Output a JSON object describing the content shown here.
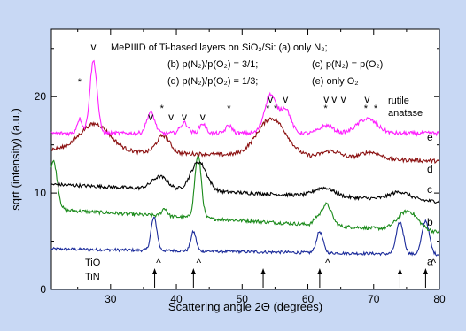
{
  "chart_data": {
    "type": "line",
    "title": "",
    "xlabel": "Scattering angle 2Θ (degrees)",
    "ylabel": "sqrt (intensity) (a.u.)",
    "xlim": [
      21,
      80
    ],
    "ylim": [
      0,
      27
    ],
    "x_ticks": [
      30,
      40,
      50,
      60,
      70,
      80
    ],
    "y_ticks": [
      0,
      10,
      20
    ],
    "grid": false,
    "colors": {
      "page_background": "#c8d8f4",
      "plot_background": "#ffffff",
      "a": "#1a2a9a",
      "b": "#1a8a1a",
      "c": "#000000",
      "d": "#8b1010",
      "e": "#ff20ff"
    },
    "annotation_lines": [
      {
        "text": "MePIIID of Ti-based layers on SiO",
        "sub": "2",
        "tail": "/Si: (a) only N",
        "sub2": "2",
        "tail2": ";"
      }
    ],
    "legend_text": {
      "line1": "MePIIID of Ti-based layers on SiO₂/Si: (a) only N₂;",
      "line2a": "(b) p(N₂)/p(O₂) = 3/1;",
      "line2b": "(c) p(N₂) = p(O₂)",
      "line3a": "(d) p(N₂)/p(O₂) = 1/3;",
      "line3b": "(e) only O₂"
    },
    "phase_labels": {
      "rutile": "rutile",
      "anatase": "anatase",
      "tio": "TiO",
      "tin": "TiN"
    },
    "rutile_marks": {
      "symbol": "v",
      "x": [
        27.4,
        36.1,
        39.2,
        41.2,
        44.0,
        54.3,
        56.6,
        62.8,
        64.0,
        65.4,
        69.0
      ]
    },
    "anatase_marks": {
      "symbol": "*",
      "x": [
        25.3,
        37.8,
        48.0,
        53.9,
        55.1,
        62.7,
        68.8,
        70.3
      ]
    },
    "tio_marks": {
      "symbol": "^",
      "x": [
        37.3,
        43.4,
        63.0,
        79.1
      ]
    },
    "tin_arrows": {
      "x": [
        36.7,
        42.6,
        53.2,
        61.8,
        74.0,
        77.9
      ]
    },
    "series": [
      {
        "name": "a",
        "base": 4.2,
        "slope": -0.01,
        "peaks": [
          [
            36.6,
            3.4,
            0.45
          ],
          [
            42.6,
            2.0,
            0.4
          ],
          [
            61.8,
            2.2,
            0.5
          ],
          [
            74.0,
            3.3,
            0.55
          ],
          [
            77.9,
            3.5,
            0.55
          ]
        ],
        "noise": 0.15
      },
      {
        "name": "b",
        "base": 8.3,
        "slope": -0.04,
        "peaks": [
          [
            21.3,
            5.0,
            0.6
          ],
          [
            38.2,
            0.8,
            0.4
          ],
          [
            43.3,
            6.5,
            0.5
          ],
          [
            61.2,
            0.5,
            0.4
          ],
          [
            62.8,
            2.2,
            0.8
          ],
          [
            75.2,
            2.0,
            1.5
          ]
        ],
        "noise": 0.18
      },
      {
        "name": "c",
        "base": 10.9,
        "slope": -0.03,
        "peaks": [
          [
            37.5,
            1.3,
            1.2
          ],
          [
            43.4,
            3.0,
            1.2
          ],
          [
            62.5,
            0.9,
            1.5
          ],
          [
            74.0,
            0.8,
            1.5
          ]
        ],
        "noise": 0.18
      },
      {
        "name": "d",
        "base": 14.5,
        "slope": -0.02,
        "peaks": [
          [
            27.6,
            2.8,
            2.3
          ],
          [
            38.0,
            1.8,
            1.0
          ],
          [
            54.5,
            3.9,
            2.2
          ],
          [
            63.5,
            0.7,
            1.5
          ],
          [
            69.5,
            0.7,
            1.5
          ]
        ],
        "noise": 0.2
      },
      {
        "name": "e",
        "base": 16.2,
        "slope": 0.0,
        "peaks": [
          [
            25.3,
            1.5,
            0.4
          ],
          [
            27.4,
            7.5,
            0.55
          ],
          [
            36.1,
            2.2,
            0.6
          ],
          [
            41.2,
            1.1,
            0.6
          ],
          [
            44.0,
            1.0,
            0.5
          ],
          [
            48.0,
            0.8,
            0.5
          ],
          [
            54.3,
            4.0,
            0.9
          ],
          [
            56.6,
            2.5,
            0.8
          ],
          [
            62.8,
            0.8,
            1.0
          ],
          [
            69.0,
            1.5,
            1.5
          ]
        ],
        "noise": 0.2
      }
    ]
  }
}
